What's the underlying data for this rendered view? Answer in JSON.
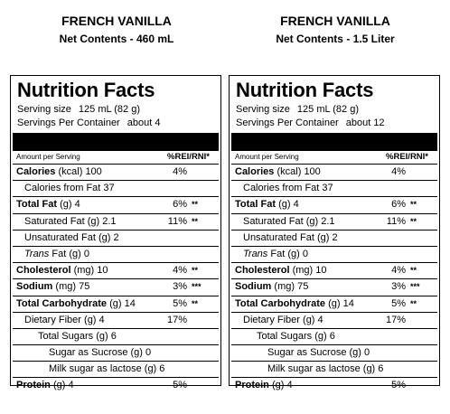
{
  "panels": [
    {
      "product_name": "FRENCH VANILLA",
      "net_contents": "Net Contents - 460 mL",
      "title": "Nutrition Facts",
      "serving_size_label": "Serving size",
      "serving_size_value": "125 mL (82 g)",
      "servings_label": "Servings Per Container",
      "servings_value": "about 4",
      "amount_per_serving": "Amount per Serving",
      "rei_rni_header": "%REI/RNI*",
      "rows": {
        "calories": {
          "name": "Calories",
          "unit": "(kcal)",
          "value": "100",
          "pct": "4%",
          "star": ""
        },
        "calories_fat": {
          "name": "Calories from Fat",
          "value": "37"
        },
        "total_fat": {
          "name": "Total Fat",
          "unit": "(g)",
          "value": "4",
          "pct": "6%",
          "star": "**"
        },
        "sat_fat": {
          "name": "Saturated Fat",
          "unit": "(g)",
          "value": "2.1",
          "pct": "11%",
          "star": "**"
        },
        "unsat_fat": {
          "name": "Unsaturated Fat",
          "unit": "(g)",
          "value": "2"
        },
        "trans_fat": {
          "name_italic": "Trans",
          "name_rest": "Fat",
          "unit": "(g)",
          "value": "0"
        },
        "cholesterol": {
          "name": "Cholesterol",
          "unit": "(mg)",
          "value": "10",
          "pct": "4%",
          "star": "**"
        },
        "sodium": {
          "name": "Sodium",
          "unit": "(mg)",
          "value": "75",
          "pct": "3%",
          "star": "***"
        },
        "total_carb": {
          "name": "Total Carbohydrate",
          "unit": "(g)",
          "value": "14",
          "pct": "5%",
          "star": "**"
        },
        "fiber": {
          "name": "Dietary Fiber",
          "unit": "(g)",
          "value": "4",
          "pct": "17%",
          "star": ""
        },
        "sugars": {
          "name": "Total Sugars",
          "unit": "(g)",
          "value": "6"
        },
        "sucrose": {
          "name": "Sugar as Sucrose",
          "unit": "(g)",
          "value": "0"
        },
        "lactose": {
          "name": "Milk sugar as lactose",
          "unit": "(g)",
          "value": "6"
        },
        "protein": {
          "name": "Protein",
          "unit": "(g)",
          "value": "4",
          "pct": "5%",
          "star": ""
        }
      }
    },
    {
      "product_name": "FRENCH VANILLA",
      "net_contents": "Net Contents - 1.5 Liter",
      "title": "Nutrition Facts",
      "serving_size_label": "Serving size",
      "serving_size_value": "125 mL (82 g)",
      "servings_label": "Servings Per Container",
      "servings_value": "about 12",
      "amount_per_serving": "Amount per Serving",
      "rei_rni_header": "%REI/RNI*",
      "rows": {
        "calories": {
          "name": "Calories",
          "unit": "(kcal)",
          "value": "100",
          "pct": "4%",
          "star": ""
        },
        "calories_fat": {
          "name": "Calories from Fat",
          "value": "37"
        },
        "total_fat": {
          "name": "Total Fat",
          "unit": "(g)",
          "value": "4",
          "pct": "6%",
          "star": "**"
        },
        "sat_fat": {
          "name": "Saturated Fat",
          "unit": "(g)",
          "value": "2.1",
          "pct": "11%",
          "star": "**"
        },
        "unsat_fat": {
          "name": "Unsaturated Fat",
          "unit": "(g)",
          "value": "2"
        },
        "trans_fat": {
          "name_italic": "Trans",
          "name_rest": "Fat",
          "unit": "(g)",
          "value": "0"
        },
        "cholesterol": {
          "name": "Cholesterol",
          "unit": "(mg)",
          "value": "10",
          "pct": "4%",
          "star": "**"
        },
        "sodium": {
          "name": "Sodium",
          "unit": "(mg)",
          "value": "75",
          "pct": "3%",
          "star": "***"
        },
        "total_carb": {
          "name": "Total Carbohydrate",
          "unit": "(g)",
          "value": "14",
          "pct": "5%",
          "star": "**"
        },
        "fiber": {
          "name": "Dietary Fiber",
          "unit": "(g)",
          "value": "4",
          "pct": "17%",
          "star": ""
        },
        "sugars": {
          "name": "Total Sugars",
          "unit": "(g)",
          "value": "6"
        },
        "sucrose": {
          "name": "Sugar as Sucrose",
          "unit": "(g)",
          "value": "0"
        },
        "lactose": {
          "name": "Milk sugar as lactose",
          "unit": "(g)",
          "value": "6"
        },
        "protein": {
          "name": "Protein",
          "unit": "(g)",
          "value": "4",
          "pct": "5%",
          "star": ""
        }
      }
    }
  ]
}
